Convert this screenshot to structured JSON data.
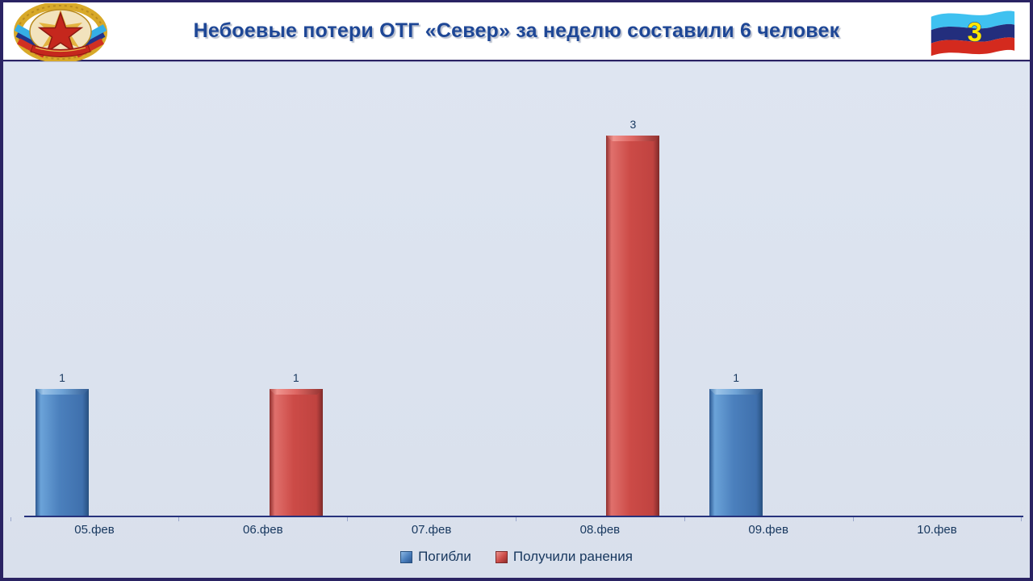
{
  "header": {
    "title": "Небоевые потери ОТГ «Север» за неделю составили 6 человек",
    "flag_number": "3"
  },
  "icons": {
    "left_emblem": "lnr-coat-of-arms",
    "right_flag": "lnr-flag"
  },
  "colors": {
    "border_navy": "#2a2363",
    "chart_background": "#dce3ef",
    "axis": "#26327c",
    "title_text": "#1e4796",
    "label_text": "#17375e",
    "series_dead": "#4a7ebc",
    "series_wounded": "#cc4b47",
    "flag_number_yellow": "#ffe600"
  },
  "chart_data": {
    "type": "bar",
    "categories": [
      "05.фев",
      "06.фев",
      "07.фев",
      "08.фев",
      "09.фев",
      "10.фев"
    ],
    "series": [
      {
        "name": "Погибли",
        "color": "#4a7ebc",
        "values": [
          1,
          0,
          0,
          0,
          1,
          0
        ]
      },
      {
        "name": "Получили ранения",
        "color": "#cc4b47",
        "values": [
          0,
          1,
          0,
          3,
          0,
          0
        ]
      }
    ],
    "title": "Небоевые потери ОТГ «Север» за неделю составили 6 человек",
    "xlabel": "",
    "ylabel": "",
    "ylim": [
      0,
      3
    ],
    "grid": false,
    "bar_labels": true,
    "legend_position": "bottom"
  }
}
